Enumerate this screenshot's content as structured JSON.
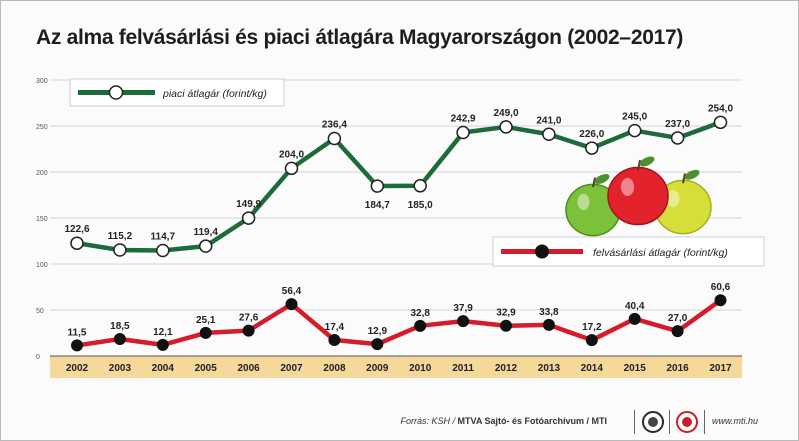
{
  "title": "Az alma felvásárlási és piaci átlagára Magyarországon (2002–2017)",
  "source_label": "Forrás: KSH / ",
  "source_bold": "MTVA Sajtó- és Fotóarchívum / MTI",
  "website": "www.mti.hu",
  "colors": {
    "market": "#1d6b3a",
    "purchase": "#d51c2b",
    "axis_band": "#f5d89a",
    "grid": "#d4d4d4"
  },
  "chart_data": {
    "type": "line",
    "title": "Az alma felvásárlási és piaci átlagára Magyarországon (2002–2017)",
    "x": [
      "2002",
      "2003",
      "2004",
      "2005",
      "2006",
      "2007",
      "2008",
      "2009",
      "2010",
      "2011",
      "2012",
      "2013",
      "2014",
      "2015",
      "2016",
      "2017"
    ],
    "ylim": [
      0,
      300
    ],
    "yticks": [
      0,
      50,
      100,
      150,
      200,
      250,
      300
    ],
    "grid": true,
    "legend_placement": "per-series labels",
    "series": [
      {
        "name": "piaci átlagár (forint/kg)",
        "color": "#1d6b3a",
        "values": [
          122.6,
          115.2,
          114.7,
          119.4,
          149.9,
          204.0,
          236.4,
          184.7,
          185.0,
          242.9,
          249.0,
          241.0,
          226.0,
          245.0,
          237.0,
          254.0
        ],
        "labels": [
          "122,6",
          "115,2",
          "114,7",
          "119,4",
          "149,9",
          "204,0",
          "236,4",
          "184,7",
          "185,0",
          "242,9",
          "249,0",
          "241,0",
          "226,0",
          "245,0",
          "237,0",
          "254,0"
        ]
      },
      {
        "name": "felvásárlási átlagár (forint/kg)",
        "color": "#d51c2b",
        "values": [
          11.5,
          18.5,
          12.1,
          25.1,
          27.6,
          56.4,
          17.4,
          12.9,
          32.8,
          37.9,
          32.9,
          33.8,
          17.2,
          40.4,
          27.0,
          60.6
        ],
        "labels": [
          "11,5",
          "18,5",
          "12,1",
          "25,1",
          "27,6",
          "56,4",
          "17,4",
          "12,9",
          "32,8",
          "37,9",
          "32,9",
          "33,8",
          "17,2",
          "40,4",
          "27,0",
          "60,6"
        ]
      }
    ]
  }
}
